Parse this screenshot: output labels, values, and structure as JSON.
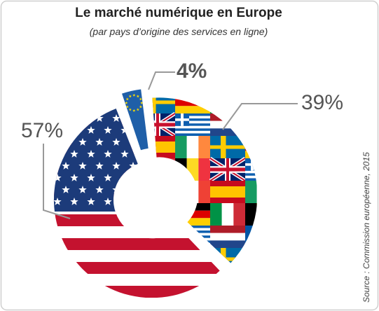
{
  "chart_data": {
    "type": "pie",
    "title": "Le marché numérique en Europe",
    "subtitle": "(par pays d’origine des services en ligne)",
    "source": "Source : Commission européenne, 2015",
    "values": [
      4,
      39,
      57
    ],
    "value_labels": [
      "4%",
      "39%",
      "57%"
    ]
  }
}
